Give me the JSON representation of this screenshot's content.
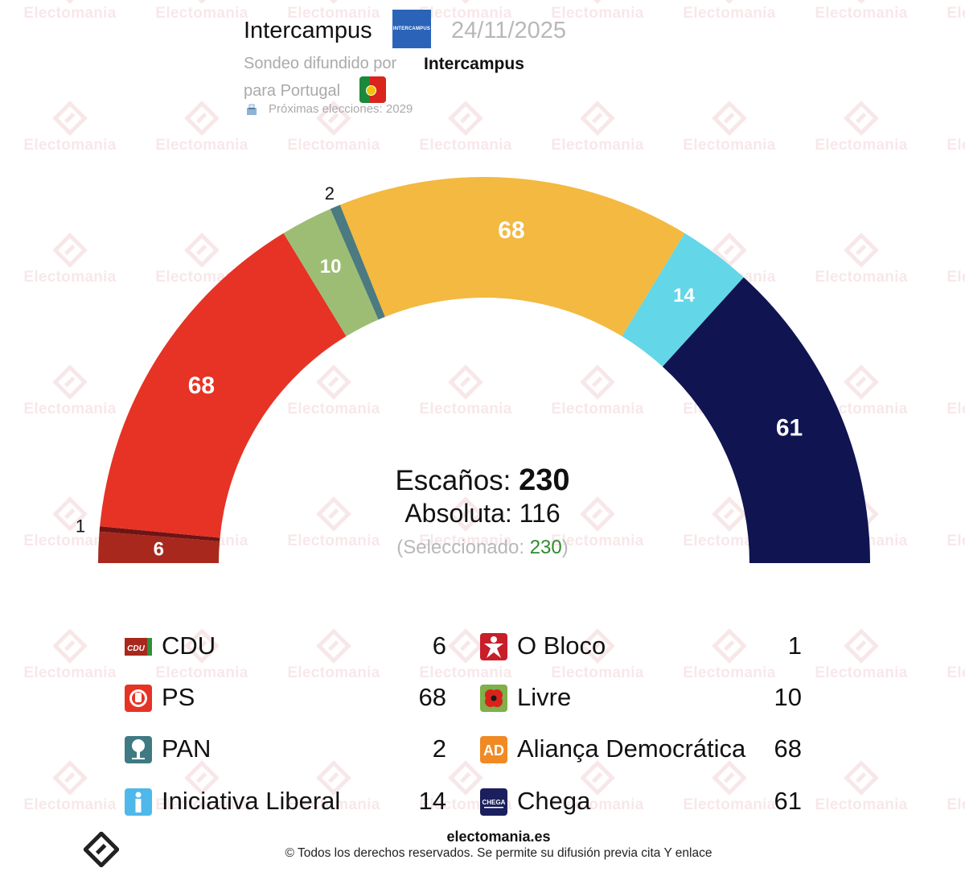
{
  "header": {
    "source": "Intercampus",
    "logo_text": "INTERCAMPUS",
    "date": "24/11/2025",
    "subtitle_prefix": "Sondeo difundido por",
    "pollster": "Intercampus",
    "country_line": "para Portugal",
    "next_elections": "Próximas elecciones: 2029"
  },
  "watermark": {
    "text": "Electomania"
  },
  "summary": {
    "seats_label": "Escaños:",
    "seats_total": "230",
    "majority_label": "Absoluta:",
    "majority_value": "116",
    "selected_prefix": "(Seleccionado: ",
    "selected_value": "230",
    "selected_suffix": ")"
  },
  "chart_data": {
    "type": "hemicycle",
    "title": "",
    "total_seats": 230,
    "majority": 116,
    "series": [
      {
        "name": "CDU",
        "value": 6,
        "color": "#a8281e",
        "label": "6"
      },
      {
        "name": "O Bloco",
        "value": 1,
        "color": "#6e1414",
        "label": "1"
      },
      {
        "name": "PS",
        "value": 68,
        "color": "#e63325",
        "label": "68"
      },
      {
        "name": "Livre",
        "value": 10,
        "color": "#9ebd74",
        "label": "10"
      },
      {
        "name": "PAN",
        "value": 2,
        "color": "#4b7a80",
        "label": "2"
      },
      {
        "name": "Aliança Democrática",
        "value": 68,
        "color": "#f3b940",
        "label": "68"
      },
      {
        "name": "Iniciativa Liberal",
        "value": 14,
        "color": "#63d6e8",
        "label": "14"
      },
      {
        "name": "Chega",
        "value": 61,
        "color": "#101451",
        "label": "61"
      }
    ]
  },
  "legend": {
    "left": [
      {
        "name": "CDU",
        "seats": "6",
        "icon": "cdu-logo-icon",
        "color": "#a8281e"
      },
      {
        "name": "PS",
        "seats": "68",
        "icon": "ps-fist-rose-icon",
        "color": "#e63325"
      },
      {
        "name": "PAN",
        "seats": "2",
        "icon": "pan-tree-icon",
        "color": "#3f7a83"
      },
      {
        "name": "Iniciativa Liberal",
        "seats": "14",
        "icon": "il-info-icon",
        "color": "#4fb8ea"
      }
    ],
    "right": [
      {
        "name": "O Bloco",
        "seats": "1",
        "icon": "bloco-star-icon",
        "color": "#c81e2a"
      },
      {
        "name": "Livre",
        "seats": "10",
        "icon": "livre-poppy-icon",
        "color": "#7fb04a"
      },
      {
        "name": "Aliança Democrática",
        "seats": "68",
        "icon": "ad-logo-icon",
        "color": "#f08a24"
      },
      {
        "name": "Chega",
        "seats": "61",
        "icon": "chega-logo-icon",
        "color": "#1b1f5e"
      }
    ],
    "icon_text": {
      "cdu": "CDU",
      "ad": "AD",
      "chega": "CHEGA"
    }
  },
  "footer": {
    "site": "electomania.es",
    "rights": "© Todos los derechos reservados. Se permite su difusión previa cita Y enlace"
  }
}
